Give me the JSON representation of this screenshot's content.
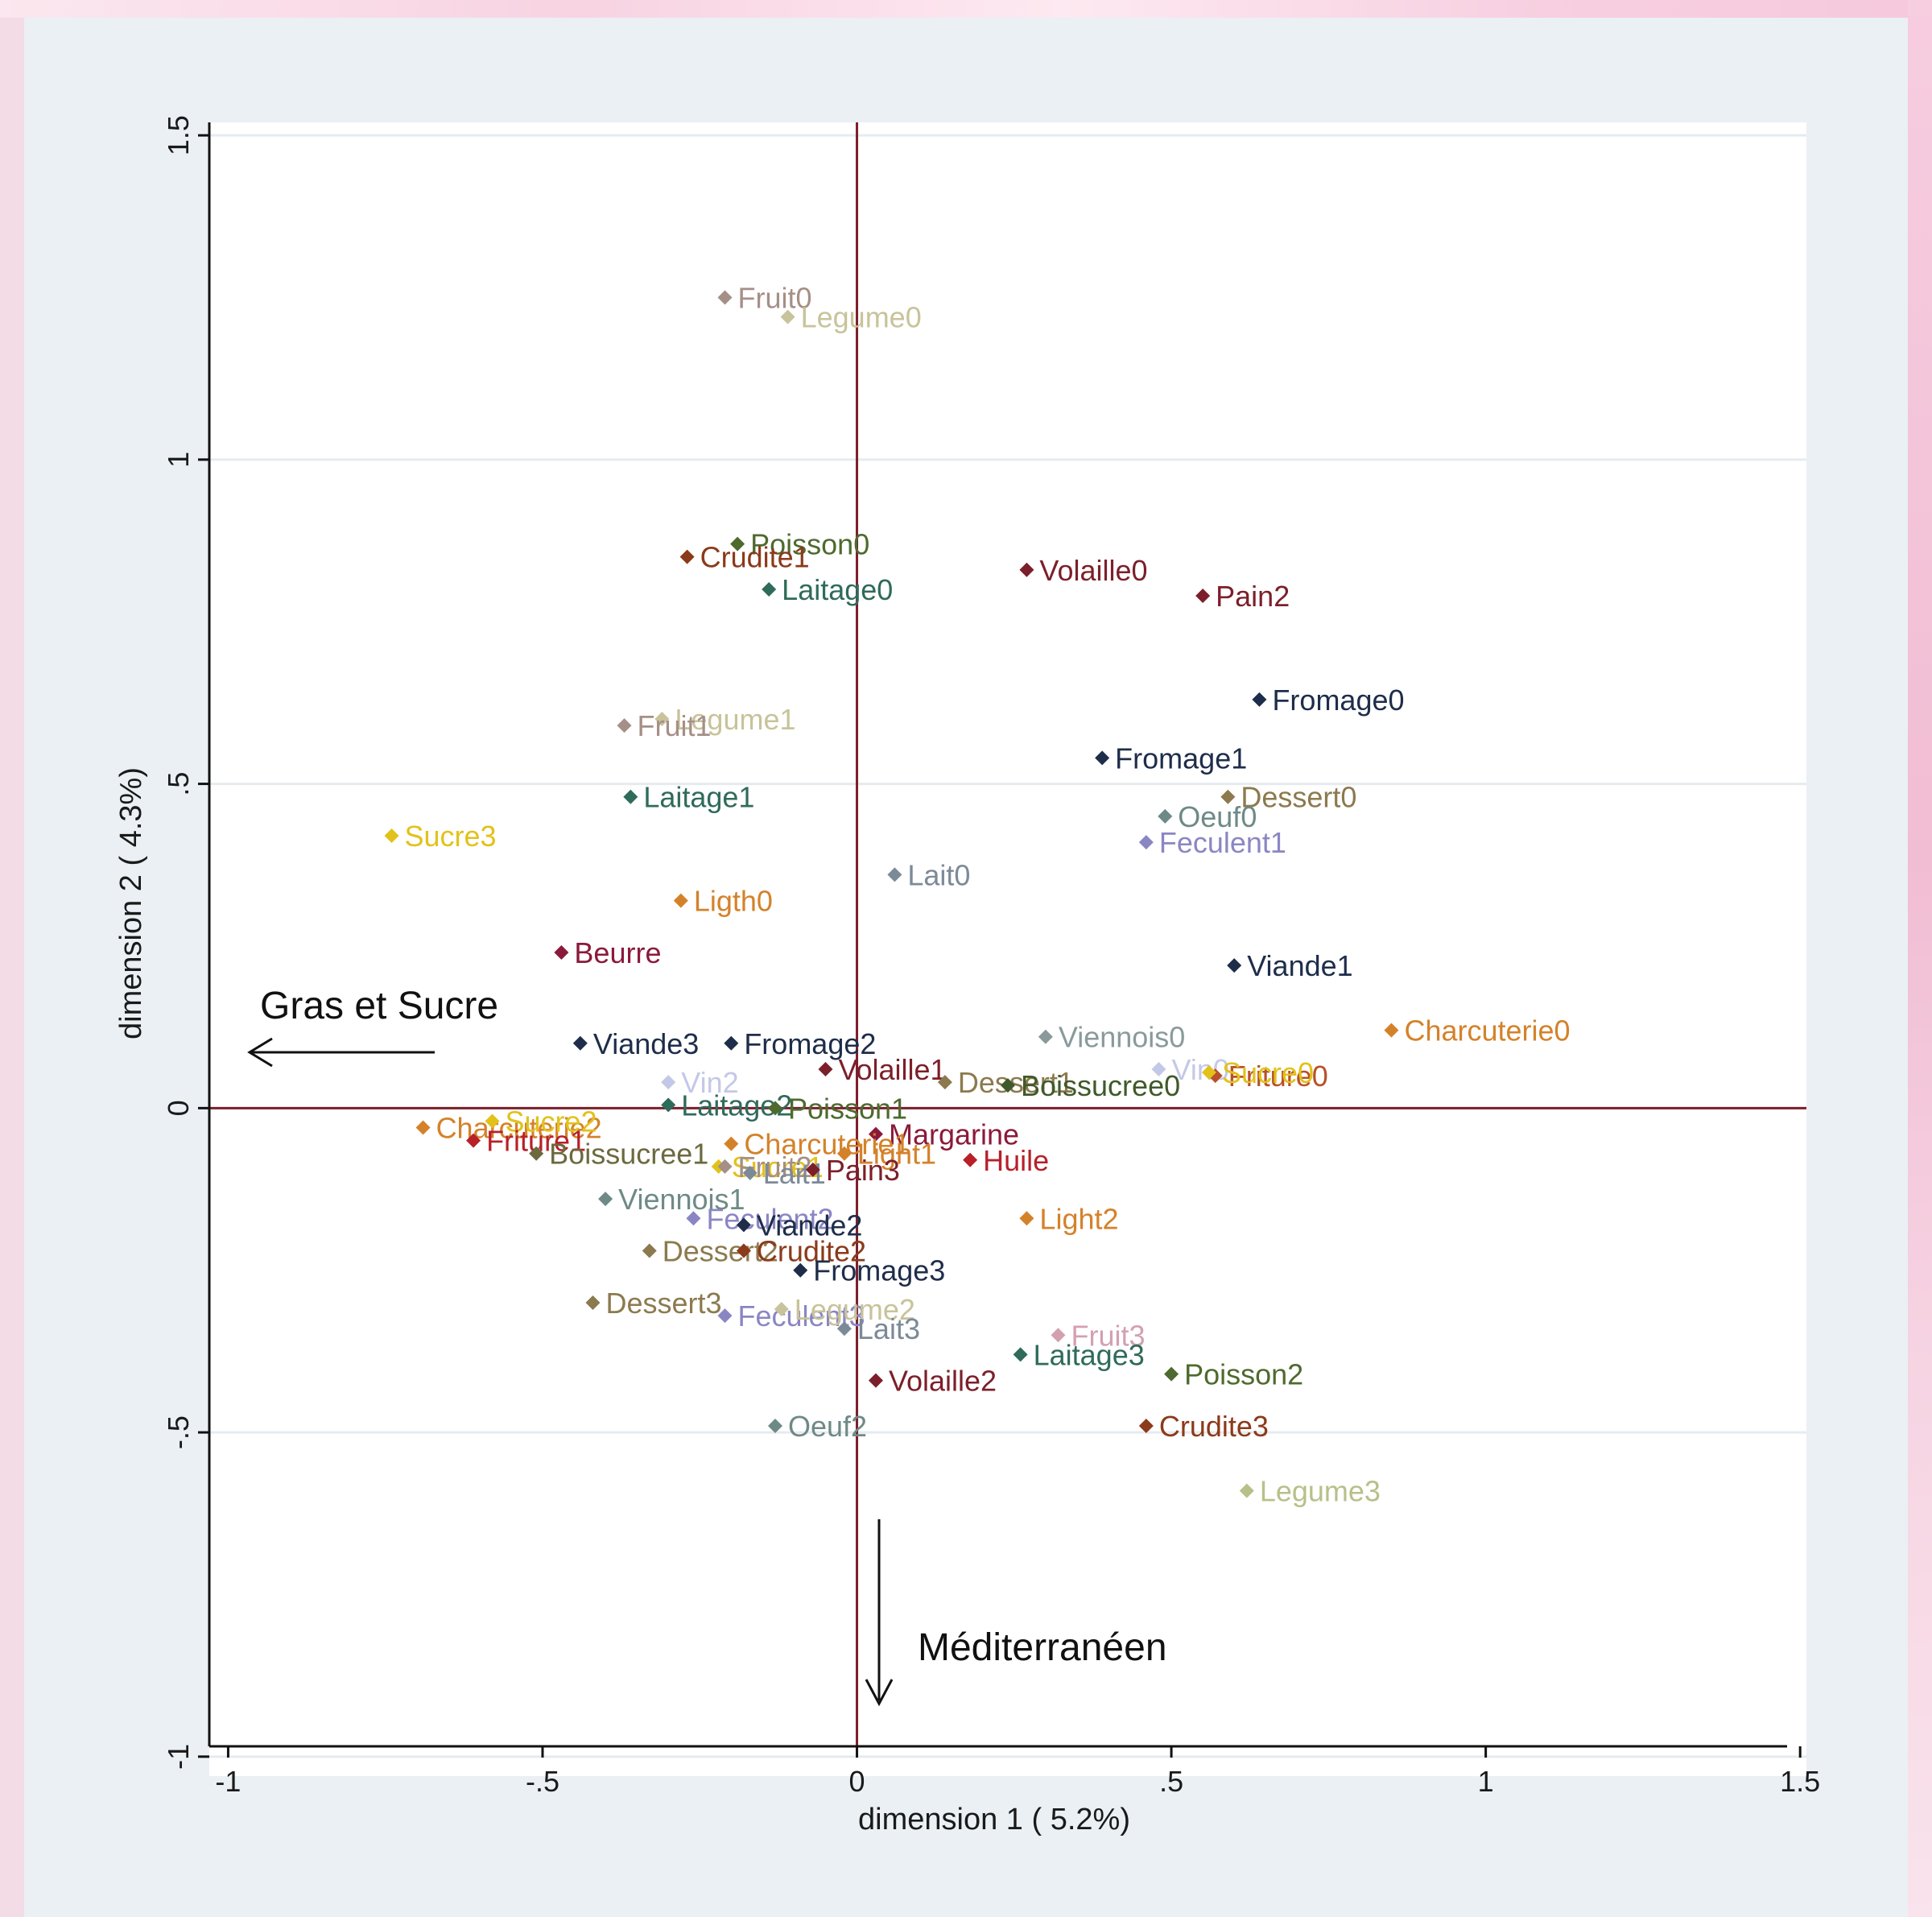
{
  "colors": {
    "plot_background": "#ffffff",
    "panel_background": "#eaf0f4",
    "axis_zero_line": "#7a1f2b",
    "gridline": "#e6ebef"
  },
  "annotations": {
    "gras": "Gras et Sucre",
    "med": "Méditerranéen"
  },
  "chart_data": {
    "type": "scatter",
    "title": "",
    "xlabel": "dimension 1 ( 5.2%)",
    "ylabel": "dimension 2 ( 4.3%)",
    "xlim": [
      -1.03,
      1.51
    ],
    "ylim": [
      -1.03,
      1.52
    ],
    "xticks": [
      -1,
      -0.5,
      0,
      0.5,
      1,
      1.5
    ],
    "xtick_labels": [
      "-1",
      "-.5",
      "0",
      ".5",
      "1",
      "1.5"
    ],
    "yticks": [
      -1,
      -0.5,
      0,
      0.5,
      1,
      1.5
    ],
    "ytick_labels": [
      "-1",
      "-.5",
      "0",
      ".5",
      "1",
      "1.5"
    ],
    "grid": "horizontal",
    "zero_lines": true,
    "points": [
      {
        "label": "Fruit0",
        "x": -0.21,
        "y": 1.25,
        "color": "#a58f86"
      },
      {
        "label": "Legume0",
        "x": -0.11,
        "y": 1.22,
        "color": "#c8c39a"
      },
      {
        "label": "Poisson0",
        "x": -0.19,
        "y": 0.87,
        "color": "#4e6a2e"
      },
      {
        "label": "Crudite1",
        "x": -0.27,
        "y": 0.85,
        "color": "#8b3a1a"
      },
      {
        "label": "Volaille0",
        "x": 0.27,
        "y": 0.83,
        "color": "#7c1f2a"
      },
      {
        "label": "Laitage0",
        "x": -0.14,
        "y": 0.8,
        "color": "#2f6b5a"
      },
      {
        "label": "Pain2",
        "x": 0.55,
        "y": 0.79,
        "color": "#7c1f2a"
      },
      {
        "label": "Fromage0",
        "x": 0.64,
        "y": 0.63,
        "color": "#1e2d4a"
      },
      {
        "label": "Legume1",
        "x": -0.31,
        "y": 0.6,
        "color": "#c8c39a"
      },
      {
        "label": "Fruit1",
        "x": -0.37,
        "y": 0.59,
        "color": "#a58f86"
      },
      {
        "label": "Fromage1",
        "x": 0.39,
        "y": 0.54,
        "color": "#1e2d4a"
      },
      {
        "label": "Laitage1",
        "x": -0.36,
        "y": 0.48,
        "color": "#2f6b5a"
      },
      {
        "label": "Dessert0",
        "x": 0.59,
        "y": 0.48,
        "color": "#8c7a4e"
      },
      {
        "label": "Oeuf0",
        "x": 0.49,
        "y": 0.45,
        "color": "#6e8a86"
      },
      {
        "label": "Sucre3",
        "x": -0.74,
        "y": 0.42,
        "color": "#e2c21a"
      },
      {
        "label": "Feculent1",
        "x": 0.46,
        "y": 0.41,
        "color": "#8a86c4"
      },
      {
        "label": "Lait0",
        "x": 0.06,
        "y": 0.36,
        "color": "#7c8a98"
      },
      {
        "label": "Ligth0",
        "x": -0.28,
        "y": 0.32,
        "color": "#d4822a"
      },
      {
        "label": "Beurre",
        "x": -0.47,
        "y": 0.24,
        "color": "#8b1a3a"
      },
      {
        "label": "Viande1",
        "x": 0.6,
        "y": 0.22,
        "color": "#1e2d4a"
      },
      {
        "label": "Charcuterie0",
        "x": 0.85,
        "y": 0.12,
        "color": "#d4822a"
      },
      {
        "label": "Viennois0",
        "x": 0.3,
        "y": 0.11,
        "color": "#8a9a9a"
      },
      {
        "label": "Viande3",
        "x": -0.44,
        "y": 0.1,
        "color": "#1e2d4a"
      },
      {
        "label": "Fromage2",
        "x": -0.2,
        "y": 0.1,
        "color": "#1e2d4a"
      },
      {
        "label": "Vin0",
        "x": 0.48,
        "y": 0.06,
        "color": "#c4c8e8"
      },
      {
        "label": "Volaille1",
        "x": -0.05,
        "y": 0.06,
        "color": "#7c1f2a"
      },
      {
        "label": "Friture0",
        "x": 0.57,
        "y": 0.05,
        "color": "#b8502a"
      },
      {
        "label": "Sucre0",
        "x": 0.56,
        "y": 0.055,
        "color": "#e2c21a"
      },
      {
        "label": "Vin2",
        "x": -0.3,
        "y": 0.04,
        "color": "#c4c8e8"
      },
      {
        "label": "Dessert1",
        "x": 0.14,
        "y": 0.04,
        "color": "#8c7a4e"
      },
      {
        "label": "Boissucree0",
        "x": 0.24,
        "y": 0.035,
        "color": "#3f5a2a"
      },
      {
        "label": "Laitage2",
        "x": -0.3,
        "y": 0.005,
        "color": "#2f6b5a"
      },
      {
        "label": "Poisson1",
        "x": -0.13,
        "y": 0.0,
        "color": "#4e6a2e"
      },
      {
        "label": "Charcuterie2",
        "x": -0.69,
        "y": -0.03,
        "color": "#d4822a"
      },
      {
        "label": "Sucre2",
        "x": -0.58,
        "y": -0.02,
        "color": "#e2c21a"
      },
      {
        "label": "Friture1",
        "x": -0.61,
        "y": -0.05,
        "color": "#b8202a"
      },
      {
        "label": "Boissucree1",
        "x": -0.51,
        "y": -0.07,
        "color": "#6b6a3e"
      },
      {
        "label": "Margarine",
        "x": 0.03,
        "y": -0.04,
        "color": "#8b1a3a"
      },
      {
        "label": "Charcuterie1",
        "x": -0.2,
        "y": -0.055,
        "color": "#d4822a"
      },
      {
        "label": "Light1",
        "x": -0.02,
        "y": -0.07,
        "color": "#d4822a"
      },
      {
        "label": "Sucre1",
        "x": -0.22,
        "y": -0.09,
        "color": "#e2c21a"
      },
      {
        "label": "Fruit2",
        "x": -0.21,
        "y": -0.09,
        "color": "#a58f86"
      },
      {
        "label": "Lait1",
        "x": -0.17,
        "y": -0.1,
        "color": "#7c8a98"
      },
      {
        "label": "Huile",
        "x": 0.18,
        "y": -0.08,
        "color": "#b8202a"
      },
      {
        "label": "Pain3",
        "x": -0.07,
        "y": -0.095,
        "color": "#7c1f2a"
      },
      {
        "label": "Viennois1",
        "x": -0.4,
        "y": -0.14,
        "color": "#6e8a86"
      },
      {
        "label": "Feculent2",
        "x": -0.26,
        "y": -0.17,
        "color": "#8a86c4"
      },
      {
        "label": "Viande2",
        "x": -0.18,
        "y": -0.18,
        "color": "#1e2d4a"
      },
      {
        "label": "Light2",
        "x": 0.27,
        "y": -0.17,
        "color": "#d4822a"
      },
      {
        "label": "Dessert2",
        "x": -0.33,
        "y": -0.22,
        "color": "#8c7a4e"
      },
      {
        "label": "Crudite2",
        "x": -0.18,
        "y": -0.22,
        "color": "#8b3a1a"
      },
      {
        "label": "Fromage3",
        "x": -0.09,
        "y": -0.25,
        "color": "#1e2d4a"
      },
      {
        "label": "Dessert3",
        "x": -0.42,
        "y": -0.3,
        "color": "#8c7a4e"
      },
      {
        "label": "Feculent3",
        "x": -0.21,
        "y": -0.32,
        "color": "#8a86c4"
      },
      {
        "label": "Legume2",
        "x": -0.12,
        "y": -0.31,
        "color": "#c8c39a"
      },
      {
        "label": "Lait3",
        "x": -0.02,
        "y": -0.34,
        "color": "#7c8a98"
      },
      {
        "label": "Fruit3",
        "x": 0.32,
        "y": -0.35,
        "color": "#d4a0b0"
      },
      {
        "label": "Laitage3",
        "x": 0.26,
        "y": -0.38,
        "color": "#2f6b5a"
      },
      {
        "label": "Poisson2",
        "x": 0.5,
        "y": -0.41,
        "color": "#4e6a2e"
      },
      {
        "label": "Volaille2",
        "x": 0.03,
        "y": -0.42,
        "color": "#7c1f2a"
      },
      {
        "label": "Crudite3",
        "x": 0.46,
        "y": -0.49,
        "color": "#8b3a1a"
      },
      {
        "label": "Oeuf2",
        "x": -0.13,
        "y": -0.49,
        "color": "#6e8a86"
      },
      {
        "label": "Legume3",
        "x": 0.62,
        "y": -0.59,
        "color": "#b8c08a"
      }
    ]
  }
}
